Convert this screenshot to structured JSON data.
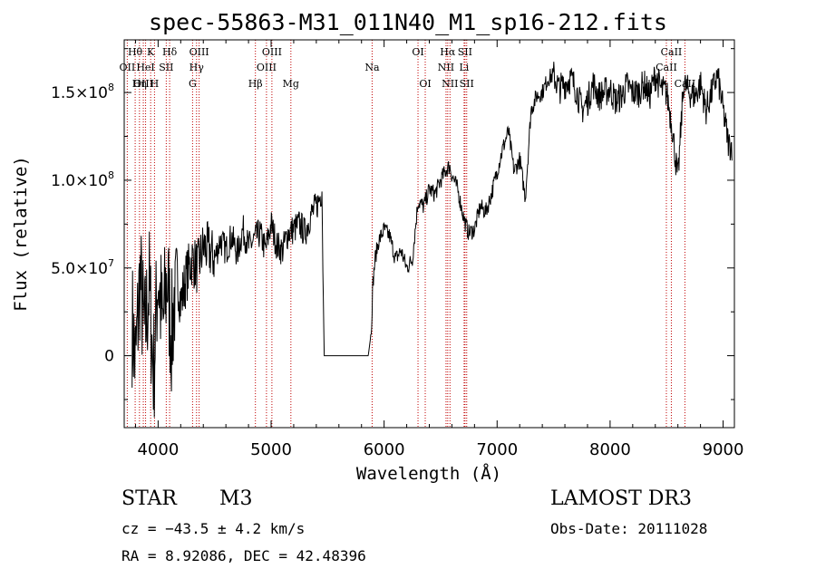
{
  "chart_data": {
    "type": "line",
    "title": "spec-55863-M31_011N40_M1_sp16-212.fits",
    "xlabel": "Wavelength (Å)",
    "ylabel": "Flux (relative)",
    "xlim": [
      3700,
      9100
    ],
    "ylim": [
      -41000000,
      180000000
    ],
    "xticks": [
      4000,
      5000,
      6000,
      7000,
      8000,
      9000
    ],
    "yticks": [
      0,
      50000000,
      100000000,
      150000000
    ],
    "xtick_labels": [
      "4000",
      "5000",
      "6000",
      "7000",
      "8000",
      "9000"
    ],
    "ytick_labels": [
      {
        "mantissa": "0",
        "exp": ""
      },
      {
        "mantissa": "5.0×10",
        "exp": "7"
      },
      {
        "mantissa": "1.0×10",
        "exp": "8"
      },
      {
        "mantissa": "1.5×10",
        "exp": "8"
      }
    ],
    "series": [
      {
        "name": "spectrum",
        "x": [
          3700,
          3760,
          3800,
          3840,
          3880,
          3920,
          3960,
          4000,
          4040,
          4080,
          4120,
          4160,
          4200,
          4250,
          4300,
          4350,
          4400,
          4450,
          4500,
          4550,
          4600,
          4650,
          4700,
          4750,
          4800,
          4850,
          4900,
          4950,
          5000,
          5050,
          5100,
          5150,
          5200,
          5250,
          5300,
          5350,
          5400,
          5430,
          5450,
          5460,
          5470,
          5500,
          5600,
          5700,
          5800,
          5860,
          5880,
          5890,
          5900,
          5920,
          5950,
          6000,
          6050,
          6100,
          6150,
          6200,
          6250,
          6300,
          6350,
          6400,
          6450,
          6500,
          6550,
          6580,
          6600,
          6650,
          6700,
          6720,
          6750,
          6800,
          6850,
          6900,
          6950,
          7000,
          7050,
          7100,
          7150,
          7200,
          7250,
          7300,
          7350,
          7400,
          7450,
          7500,
          7550,
          7600,
          7650,
          7700,
          7750,
          7800,
          7850,
          7900,
          7950,
          8000,
          8050,
          8100,
          8150,
          8200,
          8250,
          8300,
          8350,
          8400,
          8450,
          8500,
          8550,
          8600,
          8650,
          8700,
          8750,
          8800,
          8850,
          8900,
          8950,
          9000,
          9050
        ],
        "y": [
          20000000,
          28000000,
          -5000000,
          45000000,
          10000000,
          40000000,
          -10000000,
          48000000,
          15000000,
          45000000,
          10000000,
          50000000,
          30000000,
          45000000,
          55000000,
          50000000,
          62000000,
          60000000,
          55000000,
          66000000,
          60000000,
          68000000,
          58000000,
          72000000,
          62000000,
          66000000,
          70000000,
          60000000,
          75000000,
          63000000,
          60000000,
          70000000,
          72000000,
          75000000,
          70000000,
          80000000,
          85000000,
          90000000,
          95000000,
          40000000,
          0,
          0,
          0,
          0,
          0,
          0,
          10000000,
          20000000,
          40000000,
          55000000,
          65000000,
          72000000,
          68000000,
          55000000,
          60000000,
          50000000,
          55000000,
          88000000,
          85000000,
          95000000,
          92000000,
          100000000,
          106000000,
          108000000,
          103000000,
          95000000,
          80000000,
          75000000,
          70000000,
          72000000,
          85000000,
          82000000,
          92000000,
          105000000,
          118000000,
          128000000,
          105000000,
          112000000,
          90000000,
          140000000,
          148000000,
          150000000,
          158000000,
          160000000,
          152000000,
          155000000,
          158000000,
          152000000,
          140000000,
          145000000,
          155000000,
          148000000,
          150000000,
          152000000,
          145000000,
          148000000,
          154000000,
          150000000,
          150000000,
          155000000,
          148000000,
          160000000,
          152000000,
          150000000,
          130000000,
          100000000,
          155000000,
          150000000,
          148000000,
          155000000,
          140000000,
          150000000,
          160000000,
          140000000,
          120000000
        ]
      }
    ],
    "lines": [
      {
        "name": "Hθ",
        "wl": 3797,
        "row": 0,
        "pos": "top"
      },
      {
        "name": "OII",
        "wl": 3727,
        "row": 1,
        "pos": "top"
      },
      {
        "name": "OIII",
        "wl": 3869,
        "row": 2,
        "pos": "top"
      },
      {
        "name": "Hη",
        "wl": 3835,
        "row": 2,
        "pos": "top"
      },
      {
        "name": "HeI",
        "wl": 3889,
        "row": 1,
        "pos": "top"
      },
      {
        "name": "K",
        "wl": 3934,
        "row": 0,
        "pos": "top"
      },
      {
        "name": "H",
        "wl": 3968,
        "row": 2,
        "pos": "top"
      },
      {
        "name": "SII",
        "wl": 4072,
        "row": 1,
        "pos": "top"
      },
      {
        "name": "Hδ",
        "wl": 4102,
        "row": 0,
        "pos": "top"
      },
      {
        "name": "G",
        "wl": 4305,
        "row": 2,
        "pos": "top"
      },
      {
        "name": "Hγ",
        "wl": 4340,
        "row": 1,
        "pos": "top"
      },
      {
        "name": "OIII",
        "wl": 4363,
        "row": 0,
        "pos": "top"
      },
      {
        "name": "Hβ",
        "wl": 4861,
        "row": 2,
        "pos": "top"
      },
      {
        "name": "OIII",
        "wl": 4959,
        "row": 1,
        "pos": "top"
      },
      {
        "name": "OIII",
        "wl": 5007,
        "row": 0,
        "pos": "top"
      },
      {
        "name": "Mg",
        "wl": 5175,
        "row": 2,
        "pos": "top"
      },
      {
        "name": "Na",
        "wl": 5894,
        "row": 1,
        "pos": "top"
      },
      {
        "name": "OI",
        "wl": 6300,
        "row": 0,
        "pos": "top"
      },
      {
        "name": "OI",
        "wl": 6364,
        "row": 2,
        "pos": "top"
      },
      {
        "name": "NII",
        "wl": 6548,
        "row": 1,
        "pos": "top"
      },
      {
        "name": "Hα",
        "wl": 6563,
        "row": 0,
        "pos": "top"
      },
      {
        "name": "NII",
        "wl": 6583,
        "row": 2,
        "pos": "top"
      },
      {
        "name": "Li",
        "wl": 6708,
        "row": 1,
        "pos": "top"
      },
      {
        "name": "SII",
        "wl": 6716,
        "row": 0,
        "pos": "top"
      },
      {
        "name": "SII",
        "wl": 6731,
        "row": 2,
        "pos": "top"
      },
      {
        "name": "CaII",
        "wl": 8498,
        "row": 1,
        "pos": "top"
      },
      {
        "name": "CaII",
        "wl": 8542,
        "row": 0,
        "pos": "top"
      },
      {
        "name": "CaII",
        "wl": 8662,
        "row": 2,
        "pos": "top"
      }
    ]
  },
  "info": {
    "class_label": "STAR",
    "subclass_label": "M3",
    "cz_text": "cz = −43.5 ± 4.2 km/s",
    "radec_text": "RA =   8.92086, DEC =  42.48396",
    "survey": "LAMOST DR3",
    "obs_date_text": "Obs-Date: 20111028"
  },
  "colors": {
    "line": "#000000",
    "marker": "#c00000"
  }
}
